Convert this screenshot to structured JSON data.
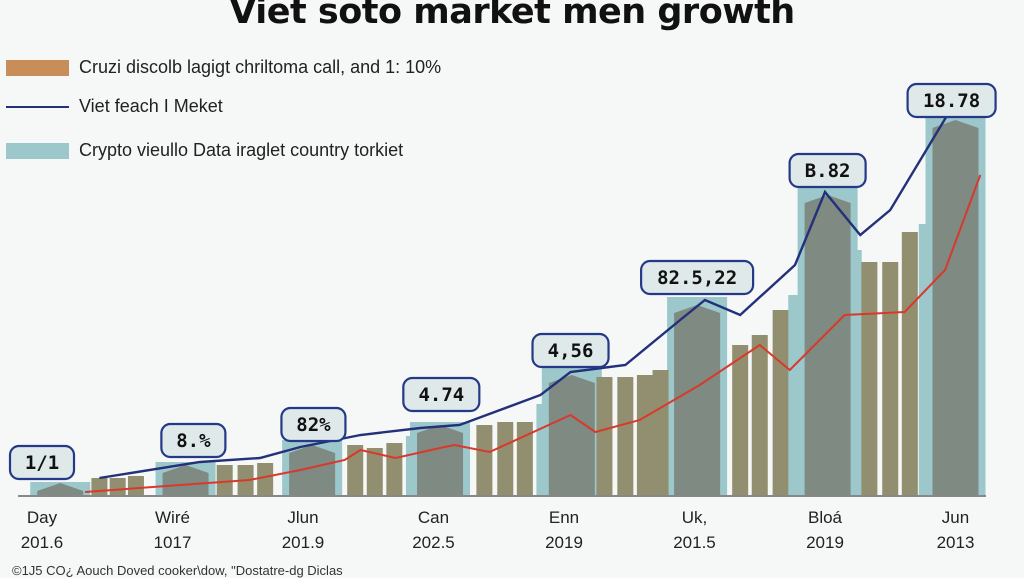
{
  "chart_data": {
    "type": "bar",
    "title": "Viet soto market men growth",
    "categories": [
      {
        "month": "Day",
        "year": "201.6"
      },
      {
        "month": "Wiré",
        "year": "1017"
      },
      {
        "month": "Jlun",
        "year": "201.9"
      },
      {
        "month": "Can",
        "year": "202.5"
      },
      {
        "month": "Enn",
        "year": "2019"
      },
      {
        "month": "Uk,",
        "year": "201.5"
      },
      {
        "month": "Bloá",
        "year": "2019"
      },
      {
        "month": "Jun",
        "year": "2013"
      }
    ],
    "legend": [
      {
        "label": "Cruzi discolb lagigt chriltoma call, and 1: 10%",
        "kind": "bar",
        "color": "#c98d5a"
      },
      {
        "label": "Viet feach I Meket",
        "kind": "line",
        "color": "#23307a"
      },
      {
        "label": "Crypto vieullo Data iraglet country torkiet",
        "kind": "bar",
        "color": "#9cc7cb"
      }
    ],
    "legend_placement": "top-left",
    "grid": false,
    "ylim": [
      0,
      105
    ],
    "colors": {
      "teal": "#9cc7cb",
      "olive": "#918f6f",
      "peak": "#7e8a82",
      "blue_line": "#23307a",
      "red_line": "#d8392b",
      "axis": "#888888"
    },
    "peaks": [
      {
        "x": 0.14,
        "teal": 3.5,
        "gray": 3.25
      },
      {
        "x": 1.1,
        "teal": 8.5,
        "gray": 7.75
      },
      {
        "x": 2.07,
        "teal": 14,
        "gray": 12.75
      },
      {
        "x": 3.05,
        "teal": 18.5,
        "gray": 17.75
      },
      {
        "x": 4.06,
        "teal": 32,
        "gray": 30.25
      },
      {
        "x": 5.02,
        "teal": 49.75,
        "gray": 47.75
      },
      {
        "x": 6.02,
        "teal": 82.75,
        "gray": 75.25
      },
      {
        "x": 7.0,
        "teal": 101,
        "gray": 94
      }
    ],
    "bars": [
      {
        "x": 0.44,
        "value": 4.5,
        "kind": "olive"
      },
      {
        "x": 0.58,
        "value": 4.5,
        "kind": "olive"
      },
      {
        "x": 0.72,
        "value": 5,
        "kind": "olive"
      },
      {
        "x": 1.4,
        "value": 7.75,
        "kind": "olive"
      },
      {
        "x": 1.56,
        "value": 7.75,
        "kind": "olive"
      },
      {
        "x": 1.71,
        "value": 8.25,
        "kind": "olive"
      },
      {
        "x": 2.4,
        "value": 12.75,
        "kind": "olive"
      },
      {
        "x": 2.55,
        "value": 12,
        "kind": "olive"
      },
      {
        "x": 2.7,
        "value": 13.25,
        "kind": "olive"
      },
      {
        "x": 2.85,
        "value": 15,
        "kind": "teal"
      },
      {
        "x": 3.39,
        "value": 17.75,
        "kind": "olive"
      },
      {
        "x": 3.55,
        "value": 18.5,
        "kind": "olive"
      },
      {
        "x": 3.7,
        "value": 18.5,
        "kind": "olive"
      },
      {
        "x": 3.85,
        "value": 23,
        "kind": "teal"
      },
      {
        "x": 4.31,
        "value": 29.75,
        "kind": "olive"
      },
      {
        "x": 4.47,
        "value": 29.75,
        "kind": "olive"
      },
      {
        "x": 4.62,
        "value": 30.25,
        "kind": "olive"
      },
      {
        "x": 4.74,
        "value": 31.5,
        "kind": "olive"
      },
      {
        "x": 5.35,
        "value": 37.75,
        "kind": "olive"
      },
      {
        "x": 5.5,
        "value": 40.25,
        "kind": "olive"
      },
      {
        "x": 5.66,
        "value": 46.5,
        "kind": "olive"
      },
      {
        "x": 5.78,
        "value": 50.25,
        "kind": "teal"
      },
      {
        "x": 6.22,
        "value": 61.5,
        "kind": "teal"
      },
      {
        "x": 6.34,
        "value": 58.5,
        "kind": "olive"
      },
      {
        "x": 6.5,
        "value": 58.5,
        "kind": "olive"
      },
      {
        "x": 6.65,
        "value": 66,
        "kind": "olive"
      },
      {
        "x": 6.78,
        "value": 68,
        "kind": "teal"
      }
    ],
    "series": [
      {
        "color": "#23307a",
        "points": [
          [
            0.44,
            4.5
          ],
          [
            1.21,
            8.5
          ],
          [
            1.67,
            9.5
          ],
          [
            1.98,
            12.25
          ],
          [
            2.44,
            15.25
          ],
          [
            2.9,
            17
          ],
          [
            3.2,
            17.75
          ],
          [
            3.82,
            25.25
          ],
          [
            4.05,
            31
          ],
          [
            4.47,
            32.75
          ],
          [
            4.89,
            44
          ],
          [
            5.08,
            49
          ],
          [
            5.35,
            45.25
          ],
          [
            5.77,
            57.75
          ],
          [
            6.0,
            76
          ],
          [
            6.27,
            65.25
          ],
          [
            6.5,
            71.5
          ],
          [
            7.03,
            100.25
          ]
        ]
      },
      {
        "color": "#d8392b",
        "points": [
          [
            0.33,
            1
          ],
          [
            1.06,
            2.75
          ],
          [
            1.59,
            4
          ],
          [
            1.98,
            6.5
          ],
          [
            2.32,
            9
          ],
          [
            2.44,
            11.5
          ],
          [
            2.71,
            9.5
          ],
          [
            3.05,
            12
          ],
          [
            3.16,
            12.75
          ],
          [
            3.43,
            11
          ],
          [
            4.05,
            20.25
          ],
          [
            4.24,
            16
          ],
          [
            4.58,
            19
          ],
          [
            5.04,
            27.75
          ],
          [
            5.5,
            37.75
          ],
          [
            5.73,
            31.5
          ],
          [
            6.15,
            45.25
          ],
          [
            6.61,
            46
          ],
          [
            6.92,
            56.5
          ],
          [
            7.19,
            80.25
          ]
        ]
      }
    ],
    "annotations": [
      {
        "x": 0.0,
        "y": 8.5,
        "text": "1/1"
      },
      {
        "x": 1.16,
        "y": 14,
        "text": "8.%"
      },
      {
        "x": 2.08,
        "y": 18,
        "text": "82%"
      },
      {
        "x": 3.06,
        "y": 25.5,
        "text": "4.74"
      },
      {
        "x": 4.05,
        "y": 36.5,
        "text": "4,56"
      },
      {
        "x": 5.02,
        "y": 54.75,
        "text": "82.5,22"
      },
      {
        "x": 6.02,
        "y": 81.5,
        "text": "B.82"
      },
      {
        "x": 6.97,
        "y": 99,
        "text": "18.78"
      }
    ],
    "footer": "©1J5 CO¿ Aouch Doved cooker\\dow, \"Dostatre-dg Diclas"
  }
}
